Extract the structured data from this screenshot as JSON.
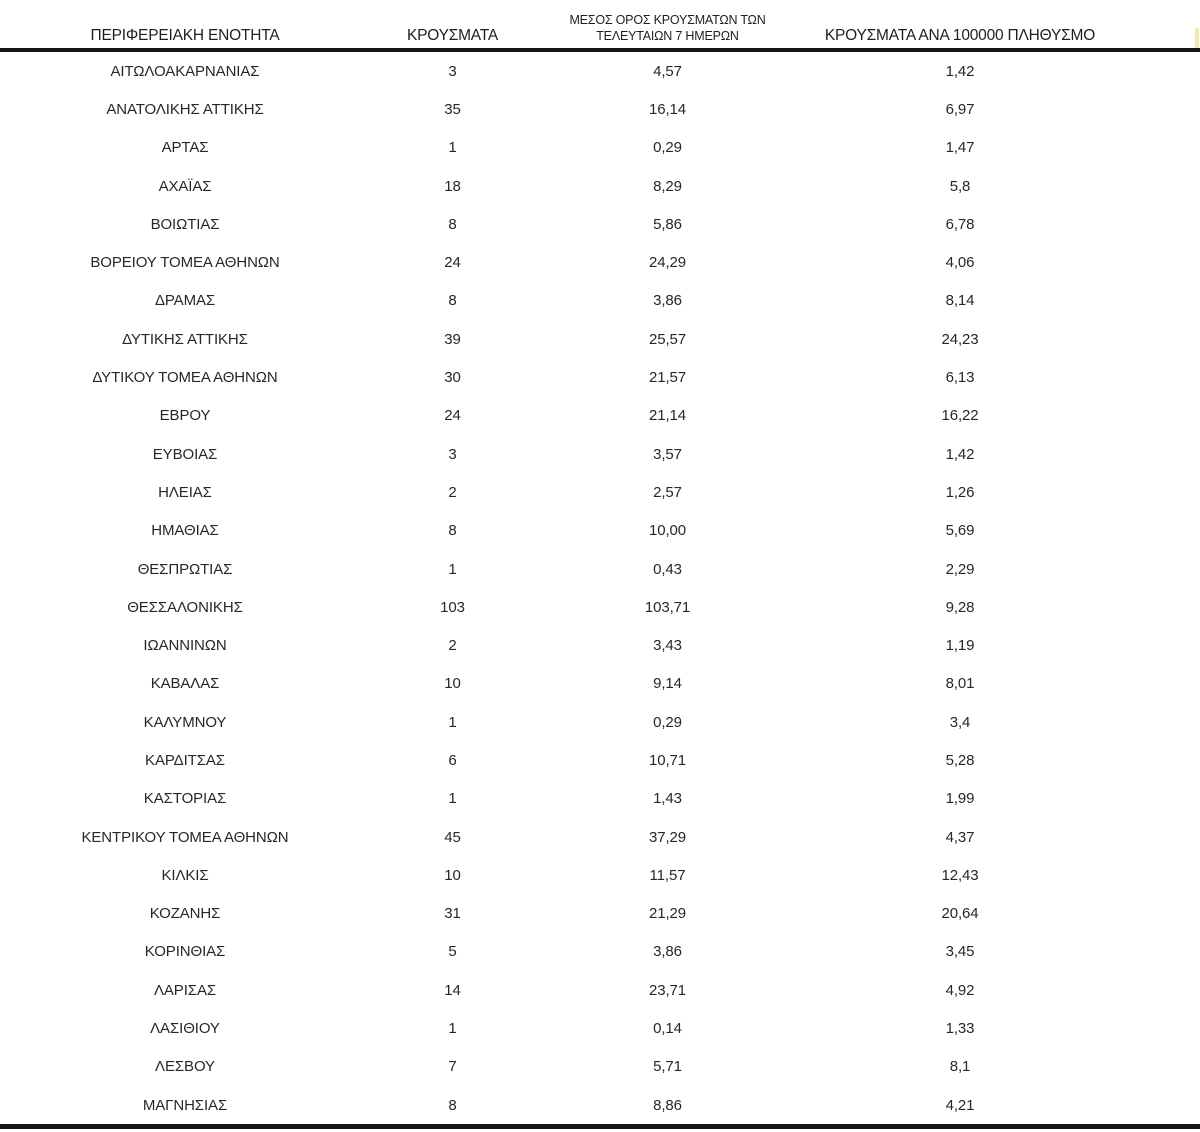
{
  "page": {
    "background": "#ffffff",
    "text_color": "#272727",
    "rule_color": "#161616"
  },
  "artifact": {
    "color": "#f2e7ae"
  },
  "table": {
    "headers": [
      "ΠΕΡΙΦΕΡΕΙΑΚΗ ΕΝΟΤΗΤΑ",
      "ΚΡΟΥΣΜΑΤΑ",
      "ΜΕΣΟΣ ΟΡΟΣ ΚΡΟΥΣΜΑΤΩΝ ΤΩΝ ΤΕΛΕΥΤΑΙΩΝ 7 ΗΜΕΡΩΝ",
      "ΚΡΟΥΣΜΑΤΑ ΑΝΑ 100000 ΠΛΗΘΥΣΜΟ"
    ],
    "rows": [
      {
        "region": "ΑΙΤΩΛΟΑΚΑΡΝΑΝΙΑΣ",
        "cases": "3",
        "avg_7day": "4,57",
        "per_100k": "1,42"
      },
      {
        "region": "ΑΝΑΤΟΛΙΚΗΣ ΑΤΤΙΚΗΣ",
        "cases": "35",
        "avg_7day": "16,14",
        "per_100k": "6,97"
      },
      {
        "region": "ΑΡΤΑΣ",
        "cases": "1",
        "avg_7day": "0,29",
        "per_100k": "1,47"
      },
      {
        "region": "ΑΧΑΪΑΣ",
        "cases": "18",
        "avg_7day": "8,29",
        "per_100k": "5,8"
      },
      {
        "region": "ΒΟΙΩΤΙΑΣ",
        "cases": "8",
        "avg_7day": "5,86",
        "per_100k": "6,78"
      },
      {
        "region": "ΒΟΡΕΙΟΥ ΤΟΜΕΑ ΑΘΗΝΩΝ",
        "cases": "24",
        "avg_7day": "24,29",
        "per_100k": "4,06"
      },
      {
        "region": "ΔΡΑΜΑΣ",
        "cases": "8",
        "avg_7day": "3,86",
        "per_100k": "8,14"
      },
      {
        "region": "ΔΥΤΙΚΗΣ ΑΤΤΙΚΗΣ",
        "cases": "39",
        "avg_7day": "25,57",
        "per_100k": "24,23"
      },
      {
        "region": "ΔΥΤΙΚΟΥ ΤΟΜΕΑ ΑΘΗΝΩΝ",
        "cases": "30",
        "avg_7day": "21,57",
        "per_100k": "6,13"
      },
      {
        "region": "ΕΒΡΟΥ",
        "cases": "24",
        "avg_7day": "21,14",
        "per_100k": "16,22"
      },
      {
        "region": "ΕΥΒΟΙΑΣ",
        "cases": "3",
        "avg_7day": "3,57",
        "per_100k": "1,42"
      },
      {
        "region": "ΗΛΕΙΑΣ",
        "cases": "2",
        "avg_7day": "2,57",
        "per_100k": "1,26"
      },
      {
        "region": "ΗΜΑΘΙΑΣ",
        "cases": "8",
        "avg_7day": "10,00",
        "per_100k": "5,69"
      },
      {
        "region": "ΘΕΣΠΡΩΤΙΑΣ",
        "cases": "1",
        "avg_7day": "0,43",
        "per_100k": "2,29"
      },
      {
        "region": "ΘΕΣΣΑΛΟΝΙΚΗΣ",
        "cases": "103",
        "avg_7day": "103,71",
        "per_100k": "9,28"
      },
      {
        "region": "ΙΩΑΝΝΙΝΩΝ",
        "cases": "2",
        "avg_7day": "3,43",
        "per_100k": "1,19"
      },
      {
        "region": "ΚΑΒΑΛΑΣ",
        "cases": "10",
        "avg_7day": "9,14",
        "per_100k": "8,01"
      },
      {
        "region": "ΚΑΛΥΜΝΟΥ",
        "cases": "1",
        "avg_7day": "0,29",
        "per_100k": "3,4"
      },
      {
        "region": "ΚΑΡΔΙΤΣΑΣ",
        "cases": "6",
        "avg_7day": "10,71",
        "per_100k": "5,28"
      },
      {
        "region": "ΚΑΣΤΟΡΙΑΣ",
        "cases": "1",
        "avg_7day": "1,43",
        "per_100k": "1,99"
      },
      {
        "region": "ΚΕΝΤΡΙΚΟΥ ΤΟΜΕΑ ΑΘΗΝΩΝ",
        "cases": "45",
        "avg_7day": "37,29",
        "per_100k": "4,37"
      },
      {
        "region": "ΚΙΛΚΙΣ",
        "cases": "10",
        "avg_7day": "11,57",
        "per_100k": "12,43"
      },
      {
        "region": "ΚΟΖΑΝΗΣ",
        "cases": "31",
        "avg_7day": "21,29",
        "per_100k": "20,64"
      },
      {
        "region": "ΚΟΡΙΝΘΙΑΣ",
        "cases": "5",
        "avg_7day": "3,86",
        "per_100k": "3,45"
      },
      {
        "region": "ΛΑΡΙΣΑΣ",
        "cases": "14",
        "avg_7day": "23,71",
        "per_100k": "4,92"
      },
      {
        "region": "ΛΑΣΙΘΙΟΥ",
        "cases": "1",
        "avg_7day": "0,14",
        "per_100k": "1,33"
      },
      {
        "region": "ΛΕΣΒΟΥ",
        "cases": "7",
        "avg_7day": "5,71",
        "per_100k": "8,1"
      },
      {
        "region": "ΜΑΓΝΗΣΙΑΣ",
        "cases": "8",
        "avg_7day": "8,86",
        "per_100k": "4,21"
      }
    ]
  }
}
